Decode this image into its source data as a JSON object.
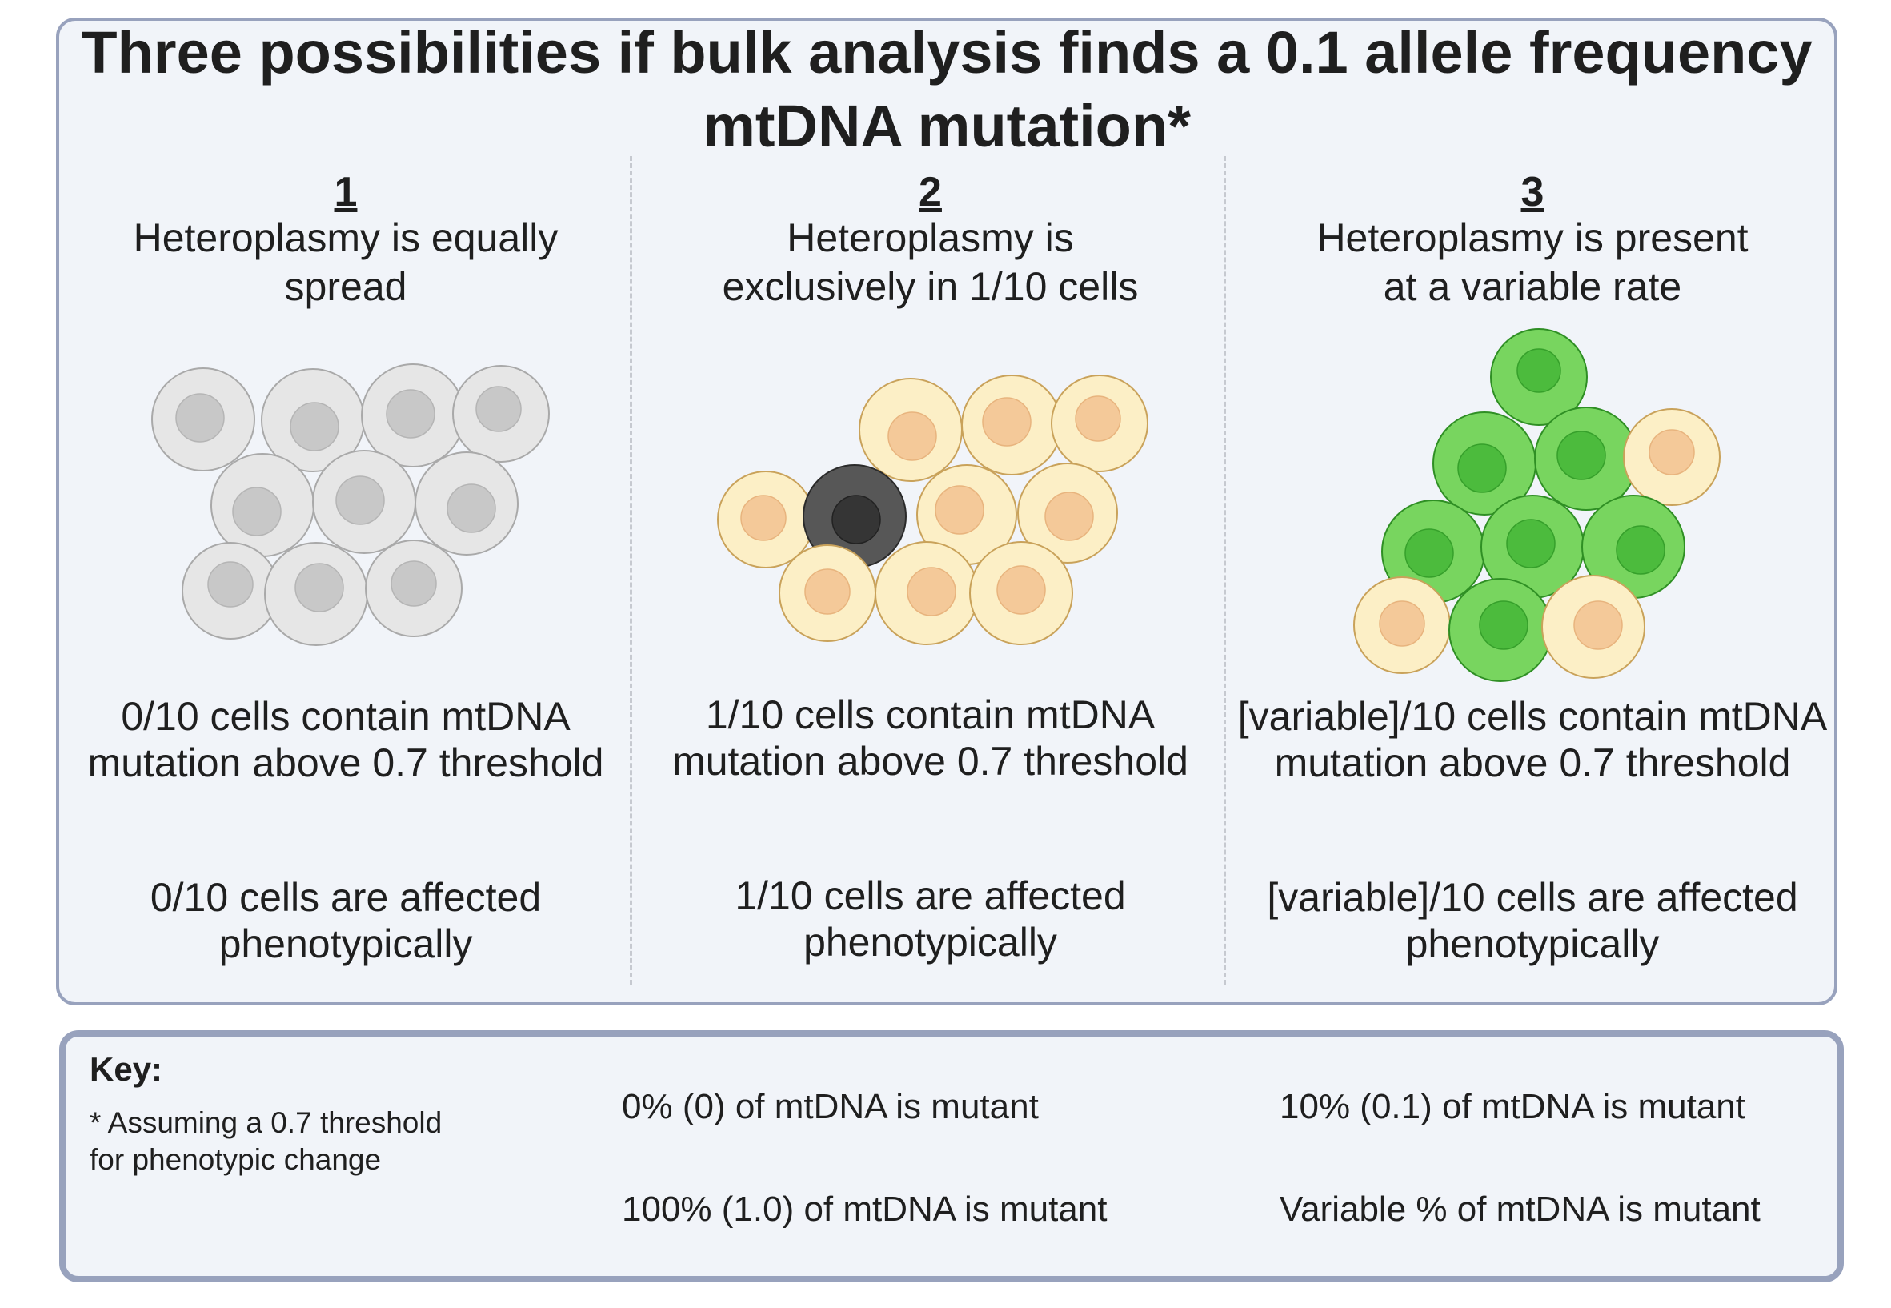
{
  "title": {
    "line1": "Three possibilities if bulk analysis finds a 0.1 allele frequency",
    "line2": "mtDNA mutation*"
  },
  "columns": [
    {
      "number": "1",
      "heading_line1": "Heteroplasmy is equally",
      "heading_line2": "spread",
      "count_line1": "0/10 cells contain mtDNA",
      "count_line2": "mutation above 0.7 threshold",
      "effect_line1": "0/10 cells are affected",
      "effect_line2": "phenotypically",
      "cell_types": [
        "grey",
        "grey",
        "grey",
        "grey",
        "grey",
        "grey",
        "grey",
        "grey",
        "grey",
        "grey"
      ]
    },
    {
      "number": "2",
      "heading_line1": "Heteroplasmy is",
      "heading_line2": "exclusively in 1/10 cells",
      "count_line1": "1/10 cells contain mtDNA",
      "count_line2": "mutation above 0.7 threshold",
      "effect_line1": "1/10 cells are affected",
      "effect_line2": "phenotypically",
      "cell_types": [
        "cream",
        "cream",
        "cream",
        "cream",
        "dark",
        "cream",
        "cream",
        "cream",
        "cream",
        "cream"
      ]
    },
    {
      "number": "3",
      "heading_line1": "Heteroplasmy is present",
      "heading_line2": "at a variable rate",
      "count_line1": "[variable]/10 cells contain mtDNA",
      "count_line2": "mutation above 0.7 threshold",
      "effect_line1": "[variable]/10 cells are affected",
      "effect_line2": "phenotypically",
      "cell_types": [
        "green",
        "green",
        "green",
        "cream",
        "green",
        "green",
        "green",
        "cream",
        "green",
        "cream"
      ]
    }
  ],
  "key": {
    "title": "Key:",
    "note": "* Assuming a 0.7 threshold for phenotypic change",
    "items": [
      {
        "type": "cream",
        "label": "0% (0) of mtDNA is mutant"
      },
      {
        "type": "grey",
        "label": "10% (0.1) of mtDNA is mutant"
      },
      {
        "type": "dark",
        "label": "100% (1.0) of mtDNA is mutant"
      },
      {
        "type": "green",
        "label": "Variable % of mtDNA is mutant"
      }
    ]
  },
  "colors": {
    "cream": {
      "body": "#fcefc6",
      "nucleus": "#f4c999",
      "stroke": "#c9a25a",
      "nucleus_stroke": "#e8b47e"
    },
    "grey": {
      "body": "#e6e6e6",
      "nucleus": "#c8c8c8",
      "stroke": "#a9a9a9",
      "nucleus_stroke": "#b5b5b5"
    },
    "dark": {
      "body": "#575757",
      "nucleus": "#353535",
      "stroke": "#2a2a2a",
      "nucleus_stroke": "#222222"
    },
    "green": {
      "body": "#78d55f",
      "nucleus": "#4cbb3d",
      "stroke": "#2f8f24",
      "nucleus_stroke": "#36a02b"
    },
    "panel_border": "#98a2bd",
    "panel_fill": "#f1f4f9"
  }
}
